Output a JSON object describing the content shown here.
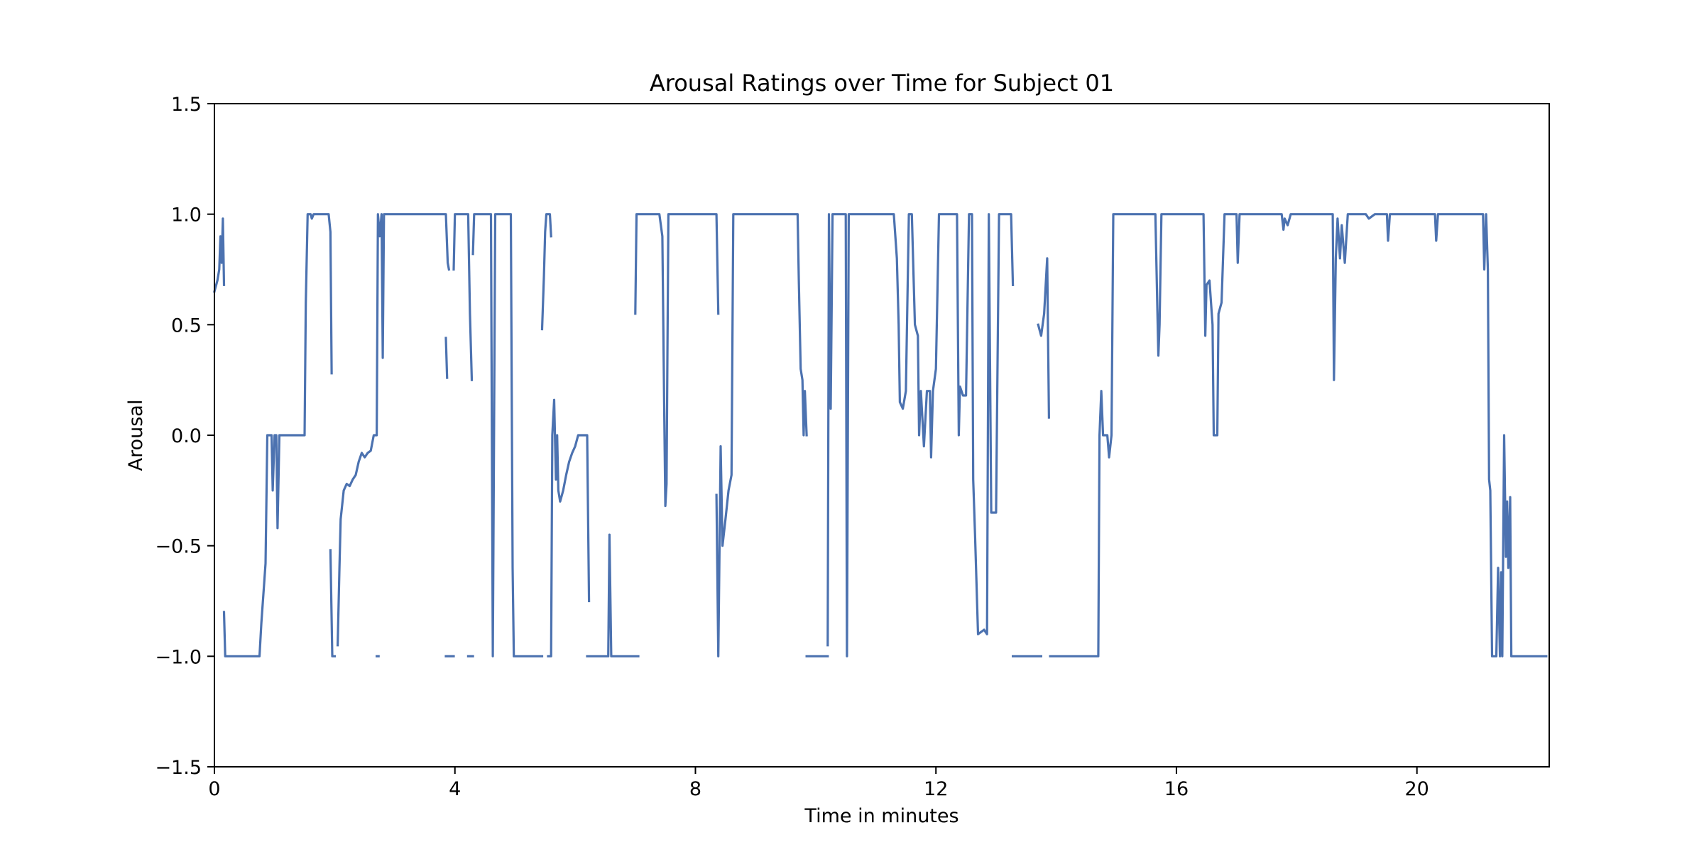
{
  "chart_data": {
    "type": "line",
    "title": "Arousal Ratings over Time for Subject 01",
    "xlabel": "Time in minutes",
    "ylabel": "Arousal",
    "xlim": [
      0,
      22.2
    ],
    "ylim": [
      -1.5,
      1.5
    ],
    "x_ticks": [
      {
        "value": 0,
        "label": "0"
      },
      {
        "value": 4,
        "label": "4"
      },
      {
        "value": 8,
        "label": "8"
      },
      {
        "value": 12,
        "label": "12"
      },
      {
        "value": 16,
        "label": "16"
      },
      {
        "value": 20,
        "label": "20"
      }
    ],
    "y_ticks": [
      {
        "value": 1.5,
        "label": "1.5"
      },
      {
        "value": 1.0,
        "label": "1.0"
      },
      {
        "value": 0.5,
        "label": "0.5"
      },
      {
        "value": 0.0,
        "label": "0.0"
      },
      {
        "value": -0.5,
        "label": "−0.5"
      },
      {
        "value": -1.0,
        "label": "−1.0"
      },
      {
        "value": -1.5,
        "label": "−1.5"
      }
    ],
    "grid": false,
    "legend": "none",
    "series": [
      {
        "color": "#4c72b0",
        "segments": [
          [
            [
              0.0,
              0.65
            ],
            [
              0.05,
              0.7
            ],
            [
              0.08,
              0.75
            ],
            [
              0.1,
              0.9
            ],
            [
              0.12,
              0.78
            ],
            [
              0.14,
              0.98
            ],
            [
              0.16,
              0.68
            ]
          ],
          [
            [
              0.16,
              -0.8
            ],
            [
              0.18,
              -1.0
            ],
            [
              0.75,
              -1.0
            ],
            [
              0.78,
              -0.85
            ],
            [
              0.82,
              -0.7
            ],
            [
              0.85,
              -0.58
            ],
            [
              0.88,
              0.0
            ],
            [
              0.95,
              0.0
            ],
            [
              0.97,
              -0.25
            ],
            [
              1.0,
              0.0
            ],
            [
              1.03,
              0.0
            ],
            [
              1.05,
              -0.42
            ],
            [
              1.08,
              0.0
            ],
            [
              1.5,
              0.0
            ],
            [
              1.52,
              0.6
            ],
            [
              1.55,
              1.0
            ],
            [
              1.6,
              1.0
            ],
            [
              1.62,
              0.98
            ],
            [
              1.65,
              1.0
            ],
            [
              1.9,
              1.0
            ],
            [
              1.93,
              0.92
            ],
            [
              1.95,
              0.28
            ]
          ],
          [
            [
              1.93,
              -0.52
            ],
            [
              1.96,
              -1.0
            ],
            [
              2.0,
              -1.0
            ]
          ],
          [
            [
              2.05,
              -0.95
            ],
            [
              2.08,
              -0.6
            ],
            [
              2.1,
              -0.38
            ],
            [
              2.15,
              -0.25
            ],
            [
              2.2,
              -0.22
            ],
            [
              2.25,
              -0.23
            ],
            [
              2.3,
              -0.2
            ],
            [
              2.35,
              -0.18
            ],
            [
              2.4,
              -0.12
            ],
            [
              2.45,
              -0.08
            ],
            [
              2.5,
              -0.1
            ],
            [
              2.55,
              -0.08
            ],
            [
              2.6,
              -0.07
            ],
            [
              2.65,
              0.0
            ],
            [
              2.7,
              0.0
            ],
            [
              2.72,
              1.0
            ],
            [
              2.75,
              0.9
            ],
            [
              2.78,
              1.0
            ],
            [
              2.8,
              0.35
            ],
            [
              2.82,
              1.0
            ],
            [
              3.85,
              1.0
            ],
            [
              3.88,
              0.78
            ],
            [
              3.9,
              0.75
            ]
          ],
          [
            [
              2.7,
              -1.0
            ],
            [
              2.73,
              -1.0
            ]
          ],
          [
            [
              3.85,
              0.44
            ],
            [
              3.87,
              0.26
            ]
          ],
          [
            [
              3.85,
              -1.0
            ],
            [
              3.98,
              -1.0
            ]
          ],
          [
            [
              3.98,
              0.75
            ],
            [
              4.0,
              1.0
            ],
            [
              4.22,
              1.0
            ],
            [
              4.25,
              0.55
            ],
            [
              4.28,
              0.25
            ]
          ],
          [
            [
              4.22,
              -1.0
            ],
            [
              4.3,
              -1.0
            ]
          ],
          [
            [
              4.3,
              0.82
            ],
            [
              4.32,
              1.0
            ],
            [
              4.6,
              1.0
            ],
            [
              4.63,
              -1.0
            ],
            [
              4.67,
              1.0
            ],
            [
              4.93,
              1.0
            ],
            [
              4.96,
              -0.6
            ],
            [
              4.98,
              -1.0
            ],
            [
              5.45,
              -1.0
            ]
          ],
          [
            [
              5.45,
              0.48
            ],
            [
              5.48,
              0.72
            ],
            [
              5.5,
              0.92
            ],
            [
              5.52,
              1.0
            ],
            [
              5.58,
              1.0
            ],
            [
              5.6,
              0.9
            ]
          ],
          [
            [
              5.55,
              -1.0
            ],
            [
              5.6,
              -1.0
            ],
            [
              5.62,
              0.0
            ],
            [
              5.65,
              0.16
            ],
            [
              5.68,
              -0.2
            ],
            [
              5.7,
              0.0
            ],
            [
              5.72,
              -0.25
            ],
            [
              5.75,
              -0.3
            ],
            [
              5.8,
              -0.25
            ],
            [
              5.85,
              -0.18
            ],
            [
              5.9,
              -0.12
            ],
            [
              5.95,
              -0.08
            ],
            [
              6.0,
              -0.05
            ],
            [
              6.05,
              0.0
            ],
            [
              6.2,
              0.0
            ],
            [
              6.23,
              -0.75
            ]
          ],
          [
            [
              6.2,
              -1.0
            ],
            [
              6.55,
              -1.0
            ],
            [
              6.57,
              -0.45
            ],
            [
              6.6,
              -1.0
            ],
            [
              7.05,
              -1.0
            ]
          ],
          [
            [
              7.0,
              0.55
            ],
            [
              7.02,
              1.0
            ],
            [
              7.4,
              1.0
            ],
            [
              7.45,
              0.9
            ],
            [
              7.48,
              0.15
            ],
            [
              7.5,
              -0.32
            ],
            [
              7.52,
              -0.22
            ],
            [
              7.55,
              1.0
            ],
            [
              8.35,
              1.0
            ],
            [
              8.38,
              0.55
            ]
          ],
          [
            [
              8.35,
              -0.27
            ],
            [
              8.38,
              -1.0
            ],
            [
              8.42,
              -0.05
            ],
            [
              8.45,
              -0.5
            ],
            [
              8.5,
              -0.38
            ],
            [
              8.55,
              -0.25
            ],
            [
              8.6,
              -0.18
            ],
            [
              8.63,
              1.0
            ],
            [
              9.7,
              1.0
            ],
            [
              9.72,
              0.7
            ],
            [
              9.75,
              0.3
            ],
            [
              9.78,
              0.25
            ],
            [
              9.8,
              0.0
            ],
            [
              9.82,
              0.2
            ],
            [
              9.85,
              0.0
            ]
          ],
          [
            [
              9.85,
              -1.0
            ],
            [
              10.2,
              -1.0
            ]
          ],
          [
            [
              10.2,
              -0.95
            ],
            [
              10.22,
              1.0
            ],
            [
              10.25,
              0.12
            ],
            [
              10.28,
              1.0
            ],
            [
              10.5,
              1.0
            ],
            [
              10.52,
              -1.0
            ],
            [
              10.55,
              1.0
            ],
            [
              11.3,
              1.0
            ],
            [
              11.35,
              0.8
            ],
            [
              11.38,
              0.5
            ],
            [
              11.4,
              0.15
            ],
            [
              11.45,
              0.12
            ],
            [
              11.5,
              0.2
            ],
            [
              11.55,
              1.0
            ],
            [
              11.6,
              1.0
            ],
            [
              11.62,
              0.8
            ],
            [
              11.65,
              0.5
            ],
            [
              11.7,
              0.45
            ],
            [
              11.72,
              0.0
            ],
            [
              11.75,
              0.2
            ],
            [
              11.8,
              -0.05
            ],
            [
              11.85,
              0.2
            ],
            [
              11.9,
              0.2
            ],
            [
              11.92,
              -0.1
            ],
            [
              11.95,
              0.2
            ],
            [
              12.0,
              0.3
            ],
            [
              12.05,
              1.0
            ],
            [
              12.35,
              1.0
            ],
            [
              12.38,
              0.0
            ],
            [
              12.4,
              0.22
            ],
            [
              12.45,
              0.18
            ],
            [
              12.5,
              0.18
            ],
            [
              12.55,
              1.0
            ],
            [
              12.6,
              1.0
            ],
            [
              12.62,
              -0.2
            ],
            [
              12.65,
              -0.45
            ],
            [
              12.7,
              -0.9
            ],
            [
              12.8,
              -0.88
            ],
            [
              12.85,
              -0.9
            ],
            [
              12.88,
              1.0
            ],
            [
              12.92,
              -0.35
            ],
            [
              13.0,
              -0.35
            ],
            [
              13.05,
              1.0
            ],
            [
              13.25,
              1.0
            ],
            [
              13.28,
              0.68
            ]
          ],
          [
            [
              13.28,
              -1.0
            ],
            [
              13.75,
              -1.0
            ]
          ],
          [
            [
              13.7,
              0.5
            ],
            [
              13.75,
              0.45
            ],
            [
              13.8,
              0.55
            ],
            [
              13.85,
              0.8
            ],
            [
              13.88,
              0.08
            ]
          ],
          [
            [
              13.9,
              -1.0
            ],
            [
              14.7,
              -1.0
            ],
            [
              14.72,
              0.0
            ],
            [
              14.75,
              0.2
            ],
            [
              14.78,
              0.0
            ],
            [
              14.85,
              0.0
            ],
            [
              14.88,
              -0.1
            ],
            [
              14.92,
              0.0
            ],
            [
              14.95,
              1.0
            ],
            [
              15.65,
              1.0
            ],
            [
              15.68,
              0.6
            ],
            [
              15.7,
              0.36
            ],
            [
              15.72,
              0.5
            ],
            [
              15.75,
              1.0
            ],
            [
              16.45,
              1.0
            ],
            [
              16.48,
              0.45
            ],
            [
              16.5,
              0.68
            ],
            [
              16.55,
              0.7
            ],
            [
              16.6,
              0.5
            ],
            [
              16.62,
              0.0
            ],
            [
              16.68,
              0.0
            ],
            [
              16.7,
              0.55
            ],
            [
              16.75,
              0.6
            ],
            [
              16.8,
              1.0
            ],
            [
              17.0,
              1.0
            ],
            [
              17.02,
              0.78
            ],
            [
              17.05,
              1.0
            ],
            [
              17.75,
              1.0
            ],
            [
              17.78,
              0.93
            ],
            [
              17.8,
              0.98
            ],
            [
              17.85,
              0.95
            ],
            [
              17.9,
              1.0
            ],
            [
              18.6,
              1.0
            ],
            [
              18.62,
              0.25
            ],
            [
              18.65,
              0.8
            ],
            [
              18.68,
              0.98
            ],
            [
              18.72,
              0.8
            ],
            [
              18.75,
              0.95
            ],
            [
              18.8,
              0.78
            ],
            [
              18.85,
              1.0
            ],
            [
              19.15,
              1.0
            ],
            [
              19.2,
              0.98
            ],
            [
              19.3,
              1.0
            ],
            [
              19.5,
              1.0
            ],
            [
              19.52,
              0.88
            ],
            [
              19.55,
              1.0
            ],
            [
              20.3,
              1.0
            ],
            [
              20.32,
              0.88
            ],
            [
              20.35,
              1.0
            ],
            [
              21.1,
              1.0
            ],
            [
              21.12,
              0.75
            ],
            [
              21.15,
              1.0
            ],
            [
              21.18,
              0.75
            ],
            [
              21.2,
              -0.2
            ],
            [
              21.22,
              -0.25
            ],
            [
              21.25,
              -1.0
            ],
            [
              21.32,
              -1.0
            ],
            [
              21.35,
              -0.6
            ],
            [
              21.38,
              -1.0
            ],
            [
              21.4,
              -0.62
            ],
            [
              21.42,
              -1.0
            ],
            [
              21.45,
              0.0
            ],
            [
              21.48,
              -0.55
            ],
            [
              21.5,
              -0.3
            ],
            [
              21.52,
              -0.6
            ],
            [
              21.55,
              -0.28
            ],
            [
              21.57,
              -1.0
            ],
            [
              22.15,
              -1.0
            ]
          ]
        ]
      }
    ]
  }
}
